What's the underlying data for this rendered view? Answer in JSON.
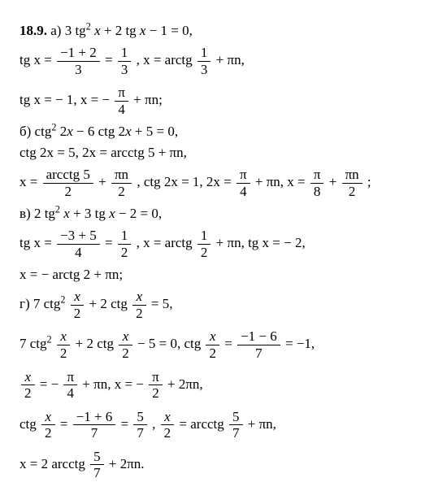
{
  "problem": {
    "number": "18.9.",
    "parts": {
      "a": {
        "eq1": "а) 3 tg² x + 2 tg x − 1 = 0,",
        "eq2_pre": "tg x = ",
        "frac1_num": "−1 + 2",
        "frac1_den": "3",
        "eq2_mid": " = ",
        "frac2_num": "1",
        "frac2_den": "3",
        "eq2_post": " ,   x = arctg ",
        "frac3_num": "1",
        "frac3_den": "3",
        "eq2_end": " + πn,",
        "eq3_pre": "tg x = − 1,   x = − ",
        "frac4_num": "π",
        "frac4_den": "4",
        "eq3_end": " + πn;"
      },
      "b": {
        "eq1": "б) ctg² 2x − 6 ctg 2x + 5 = 0,",
        "eq2": " ctg 2x = 5,   2x = arcctg 5 + πn,",
        "eq3_pre": "x = ",
        "frac1_num": "arcctg 5",
        "frac1_den": "2",
        "eq3_mid1": " + ",
        "frac2_num": "πn",
        "frac2_den": "2",
        "eq3_mid2": " ,  ctg 2x = 1,  2x = ",
        "frac3_num": "π",
        "frac3_den": "4",
        "eq3_mid3": " + πn,   x = ",
        "frac4_num": "π",
        "frac4_den": "8",
        "eq3_mid4": " + ",
        "frac5_num": "πn",
        "frac5_den": "2",
        "eq3_end": " ;"
      },
      "c": {
        "eq1": "в) 2 tg² x + 3 tg x − 2 = 0,",
        "eq2_pre": " tg x = ",
        "frac1_num": "−3 + 5",
        "frac1_den": "4",
        "eq2_mid1": " = ",
        "frac2_num": "1",
        "frac2_den": "2",
        "eq2_mid2": " ,   x = arctg ",
        "frac3_num": "1",
        "frac3_den": "2",
        "eq2_end": " + πn, tg x = − 2,",
        "eq3": "x = − arctg 2 + πn;"
      },
      "d": {
        "eq1_pre": "г) 7 ctg² ",
        "fracx2_num": "x",
        "fracx2_den": "2",
        "eq1_mid": " + 2 ctg ",
        "eq1_end": " = 5,",
        "eq2_pre": "7 ctg² ",
        "eq2_mid1": " + 2 ctg ",
        "eq2_mid2": " − 5 = 0, ctg ",
        "eq2_mid3": " = ",
        "frac3_num": "−1 − 6",
        "frac3_den": "7",
        "eq2_end": " = −1,",
        "eq3_mid1": " = − ",
        "fracpi4_num": "π",
        "fracpi4_den": "4",
        "eq3_mid2": " + πn,   x = − ",
        "fracpi2_num": "π",
        "fracpi2_den": "2",
        "eq3_end": " + 2πn,",
        "eq4_pre": "ctg ",
        "eq4_mid1": " = ",
        "frac5_num": "−1 + 6",
        "frac5_den": "7",
        "eq4_mid2": " = ",
        "frac6_num": "5",
        "frac6_den": "7",
        "eq4_mid3": " ,   ",
        "eq4_mid4": " = arcctg ",
        "eq4_end": " + πn,",
        "eq5_pre": "x = 2 arcctg ",
        "eq5_end": " + 2πn."
      }
    }
  }
}
